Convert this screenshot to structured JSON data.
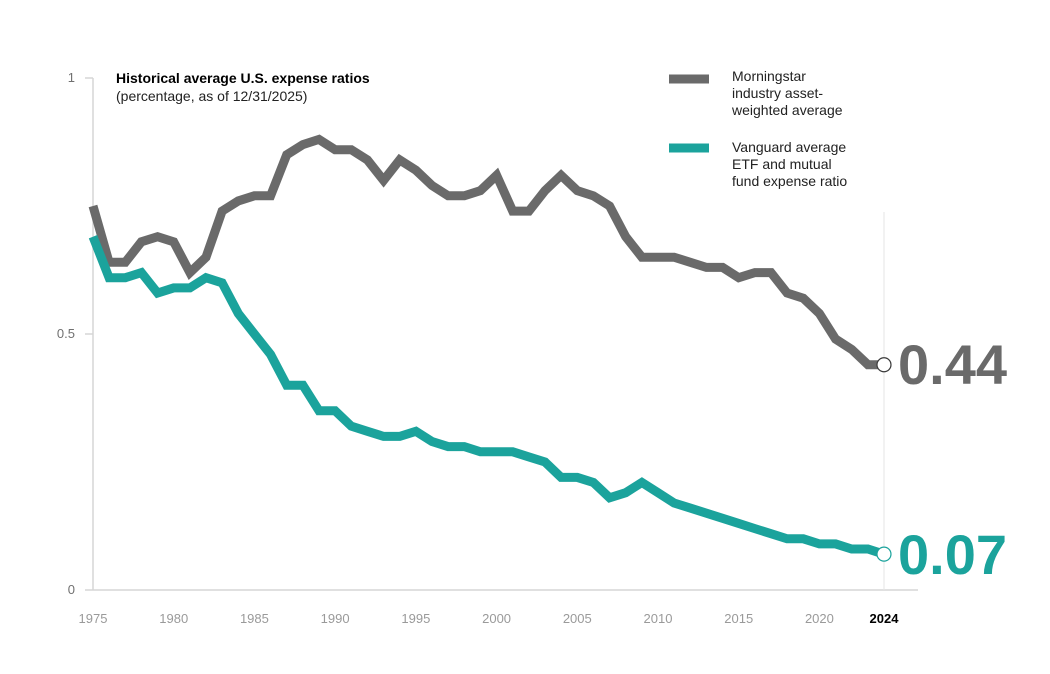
{
  "chart_data": {
    "type": "line",
    "title": "Historical average U.S. expense ratios",
    "subtitle": "(percentage, as of 12/31/2025)",
    "x_ticks": [
      "1975",
      "1980",
      "1985",
      "1990",
      "1995",
      "2000",
      "2005",
      "2010",
      "2015",
      "2020",
      "2024"
    ],
    "highlight_tick": "2024",
    "y_ticks": [
      "0",
      "0.5",
      "1"
    ],
    "xlim": [
      1975,
      2024
    ],
    "ylim": [
      0,
      1
    ],
    "x": [
      1975,
      1976,
      1977,
      1978,
      1979,
      1980,
      1981,
      1982,
      1983,
      1984,
      1985,
      1986,
      1987,
      1988,
      1989,
      1990,
      1991,
      1992,
      1993,
      1994,
      1995,
      1996,
      1997,
      1998,
      1999,
      2000,
      2001,
      2002,
      2003,
      2004,
      2005,
      2006,
      2007,
      2008,
      2009,
      2010,
      2011,
      2012,
      2013,
      2014,
      2015,
      2016,
      2017,
      2018,
      2019,
      2020,
      2021,
      2022,
      2023,
      2024
    ],
    "series": [
      {
        "name": "Morningstar industry asset-weighted average",
        "legend_lines": [
          "Morningstar",
          "industry asset-",
          "weighted average"
        ],
        "color": "#6a6a6a",
        "end_label": "0.44",
        "values": [
          0.75,
          0.64,
          0.64,
          0.68,
          0.69,
          0.68,
          0.62,
          0.65,
          0.74,
          0.76,
          0.77,
          0.77,
          0.85,
          0.87,
          0.88,
          0.86,
          0.86,
          0.84,
          0.8,
          0.84,
          0.82,
          0.79,
          0.77,
          0.77,
          0.78,
          0.81,
          0.74,
          0.74,
          0.78,
          0.81,
          0.78,
          0.77,
          0.75,
          0.69,
          0.65,
          0.65,
          0.65,
          0.64,
          0.63,
          0.63,
          0.61,
          0.62,
          0.62,
          0.58,
          0.57,
          0.54,
          0.49,
          0.47,
          0.44,
          0.44
        ]
      },
      {
        "name": "Vanguard average ETF and mutual fund expense ratio",
        "legend_lines": [
          "Vanguard average",
          "ETF and mutual",
          "fund expense ratio"
        ],
        "color": "#1ba39c",
        "end_label": "0.07",
        "values": [
          0.69,
          0.61,
          0.61,
          0.62,
          0.58,
          0.59,
          0.59,
          0.61,
          0.6,
          0.54,
          0.5,
          0.46,
          0.4,
          0.4,
          0.35,
          0.35,
          0.32,
          0.31,
          0.3,
          0.3,
          0.31,
          0.29,
          0.28,
          0.28,
          0.27,
          0.27,
          0.27,
          0.26,
          0.25,
          0.22,
          0.22,
          0.21,
          0.18,
          0.19,
          0.21,
          0.19,
          0.17,
          0.16,
          0.15,
          0.14,
          0.13,
          0.12,
          0.11,
          0.1,
          0.1,
          0.09,
          0.09,
          0.08,
          0.08,
          0.07
        ]
      }
    ],
    "grid": false,
    "legend_position": "top-right"
  }
}
